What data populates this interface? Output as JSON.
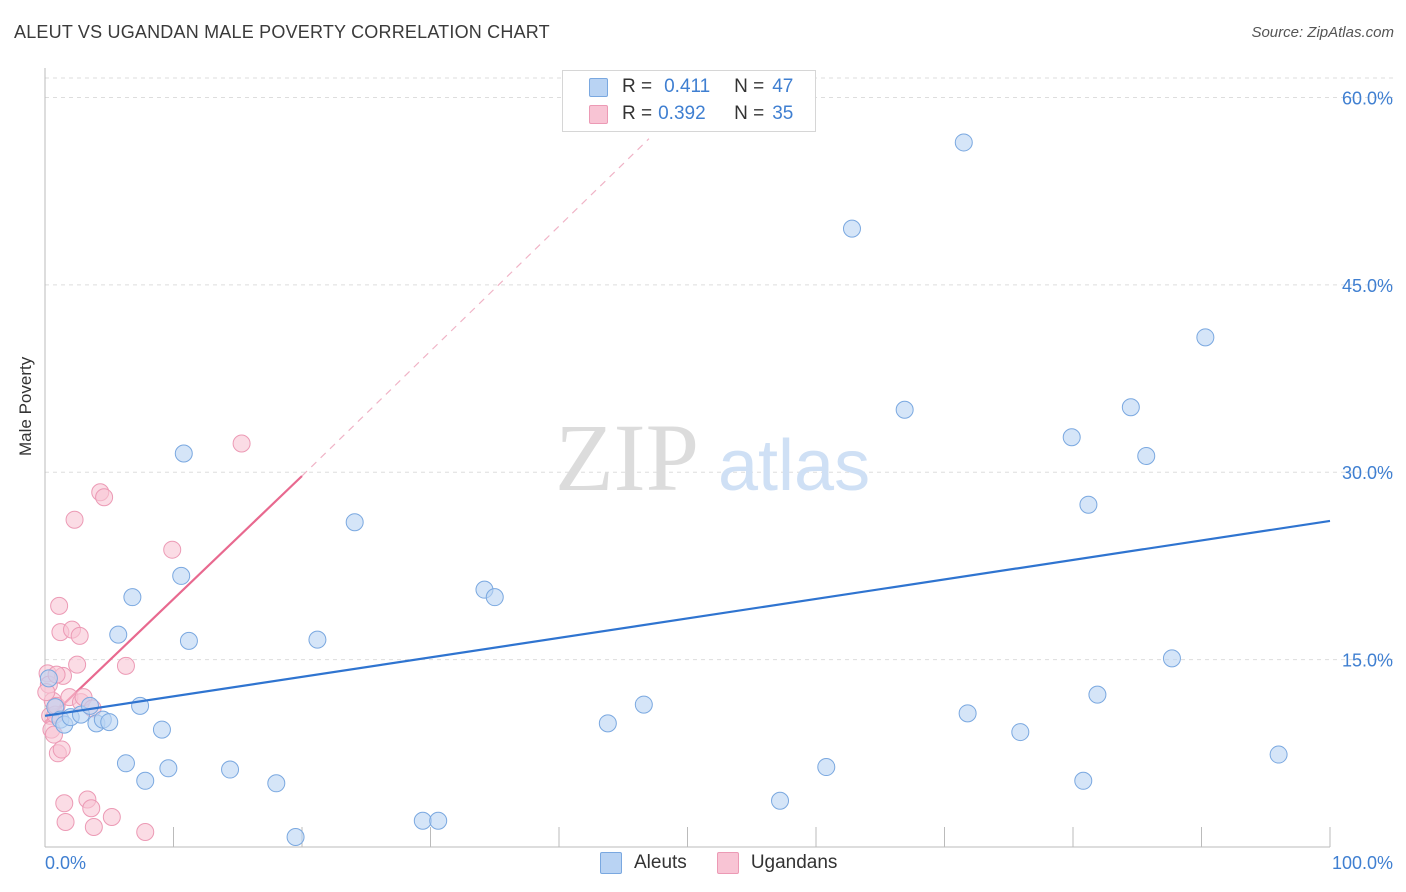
{
  "header": {
    "title": "ALEUT VS UGANDAN MALE POVERTY CORRELATION CHART",
    "source": "Source: ZipAtlas.com"
  },
  "watermark": {
    "zip": "ZIP",
    "atlas": "atlas"
  },
  "legend_top": {
    "rows": [
      {
        "r_label": "R =",
        "r_value": "0.411",
        "n_label": "N =",
        "n_value": "47"
      },
      {
        "r_label": "R =",
        "r_value": "0.392",
        "n_label": "N =",
        "n_value": "35"
      }
    ]
  },
  "legend_bottom": {
    "items": [
      "Aleuts",
      "Ugandans"
    ]
  },
  "colors": {
    "aleut_fill": "#b9d3f3",
    "aleut_stroke": "#7aa8e0",
    "aleut_line": "#2f74d0",
    "ugandan_fill": "#f8c4d4",
    "ugandan_stroke": "#ec9ab5",
    "ugandan_line": "#e8698f",
    "tick_text": "#3f7fd1",
    "grid": "#dddddd"
  },
  "chart_data": {
    "type": "scatter",
    "title": "ALEUT VS UGANDAN MALE POVERTY CORRELATION CHART",
    "xlabel": "",
    "ylabel": "Male Poverty",
    "xlim": [
      0,
      100
    ],
    "ylim": [
      0,
      63
    ],
    "x_tick_labels": [
      "0.0%",
      "100.0%"
    ],
    "y_ticks": [
      15,
      30,
      45,
      60
    ],
    "y_tick_labels": [
      "15.0%",
      "30.0%",
      "45.0%",
      "60.0%"
    ],
    "grid": true,
    "series": [
      {
        "name": "Aleuts",
        "r": 0.411,
        "n": 47,
        "trend": {
          "x0": 0,
          "y0": 10.5,
          "x1": 100,
          "y1": 26.1
        },
        "points": [
          [
            0.3,
            13.5
          ],
          [
            0.8,
            11.2
          ],
          [
            1.2,
            10.2
          ],
          [
            1.5,
            9.8
          ],
          [
            2.0,
            10.4
          ],
          [
            2.8,
            10.6
          ],
          [
            3.5,
            11.3
          ],
          [
            4.0,
            9.9
          ],
          [
            4.5,
            10.2
          ],
          [
            5.0,
            10.0
          ],
          [
            5.7,
            17.0
          ],
          [
            6.3,
            6.7
          ],
          [
            6.8,
            20.0
          ],
          [
            7.4,
            11.3
          ],
          [
            7.8,
            5.3
          ],
          [
            9.1,
            9.4
          ],
          [
            9.6,
            6.3
          ],
          [
            10.6,
            21.7
          ],
          [
            10.8,
            31.5
          ],
          [
            11.2,
            16.5
          ],
          [
            14.4,
            6.2
          ],
          [
            18.0,
            5.1
          ],
          [
            19.5,
            0.8
          ],
          [
            21.2,
            16.6
          ],
          [
            24.1,
            26.0
          ],
          [
            29.4,
            2.1
          ],
          [
            30.6,
            2.1
          ],
          [
            34.2,
            20.6
          ],
          [
            35.0,
            20.0
          ],
          [
            43.8,
            9.9
          ],
          [
            46.6,
            11.4
          ],
          [
            57.2,
            3.7
          ],
          [
            60.8,
            6.4
          ],
          [
            62.8,
            49.5
          ],
          [
            66.9,
            35.0
          ],
          [
            71.5,
            56.4
          ],
          [
            71.8,
            10.7
          ],
          [
            75.9,
            9.2
          ],
          [
            79.9,
            32.8
          ],
          [
            80.8,
            5.3
          ],
          [
            81.2,
            27.4
          ],
          [
            81.9,
            12.2
          ],
          [
            84.5,
            35.2
          ],
          [
            85.7,
            31.3
          ],
          [
            87.7,
            15.1
          ],
          [
            90.3,
            40.8
          ],
          [
            96.0,
            7.4
          ]
        ]
      },
      {
        "name": "Ugandans",
        "r": 0.392,
        "n": 35,
        "trend": {
          "x0": 0,
          "y0": 10.0,
          "x1": 20,
          "y1": 29.7
        },
        "trend_dashed_to": {
          "x": 47,
          "y": 56.7
        },
        "points": [
          [
            0.2,
            13.9
          ],
          [
            0.3,
            13.0
          ],
          [
            0.4,
            10.5
          ],
          [
            0.5,
            9.4
          ],
          [
            0.6,
            11.7
          ],
          [
            0.7,
            9.0
          ],
          [
            0.8,
            10.6
          ],
          [
            0.9,
            11.3
          ],
          [
            1.0,
            7.5
          ],
          [
            1.1,
            19.3
          ],
          [
            1.2,
            17.2
          ],
          [
            1.3,
            7.8
          ],
          [
            1.4,
            13.7
          ],
          [
            1.5,
            3.5
          ],
          [
            1.6,
            2.0
          ],
          [
            1.9,
            12.0
          ],
          [
            2.1,
            17.4
          ],
          [
            2.3,
            26.2
          ],
          [
            2.5,
            14.6
          ],
          [
            2.7,
            16.9
          ],
          [
            2.8,
            11.6
          ],
          [
            3.0,
            12.0
          ],
          [
            3.3,
            3.8
          ],
          [
            3.6,
            3.1
          ],
          [
            3.7,
            11.1
          ],
          [
            3.8,
            1.6
          ],
          [
            4.3,
            28.4
          ],
          [
            4.6,
            28.0
          ],
          [
            5.2,
            2.4
          ],
          [
            6.3,
            14.5
          ],
          [
            7.8,
            1.2
          ],
          [
            9.9,
            23.8
          ],
          [
            15.3,
            32.3
          ],
          [
            0.1,
            12.4
          ],
          [
            0.9,
            13.8
          ]
        ]
      }
    ]
  }
}
